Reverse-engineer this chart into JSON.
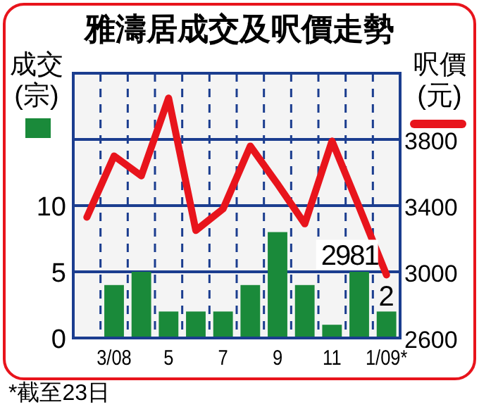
{
  "chart_data": {
    "type": "bar",
    "title": "雅濤居成交及呎價走勢",
    "ylabel": "成交(宗)",
    "y2label": "呎價(元)",
    "categories": [
      null,
      "3/08",
      null,
      "5",
      null,
      "7",
      null,
      "9",
      null,
      "11",
      null,
      "1/09*"
    ],
    "series": [
      {
        "color": "#1a8a3a",
        "values": [
          null,
          4,
          5,
          2,
          2,
          2,
          4,
          8,
          4,
          1,
          5,
          2
        ],
        "value_labels": [
          null,
          null,
          null,
          null,
          null,
          null,
          null,
          null,
          null,
          null,
          null,
          "2"
        ]
      },
      {
        "type": "line",
        "axis": "y2",
        "color": "#e8141c",
        "values": [
          3330,
          3700,
          3580,
          4050,
          3250,
          3380,
          3760,
          3530,
          3290,
          3790,
          3390,
          2981
        ],
        "value_labels": [
          null,
          null,
          null,
          null,
          null,
          null,
          null,
          null,
          null,
          null,
          null,
          "2981"
        ]
      }
    ],
    "ylim": [
      0,
      20
    ],
    "yticks": [
      0,
      5,
      10,
      {
        "value": 15,
        "label": null
      }
    ],
    "y2lim": [
      2600,
      4200
    ],
    "y2ticks": [
      2600,
      3000,
      3400,
      3800
    ],
    "grid": true,
    "annotations": [
      "*截至23日"
    ]
  }
}
